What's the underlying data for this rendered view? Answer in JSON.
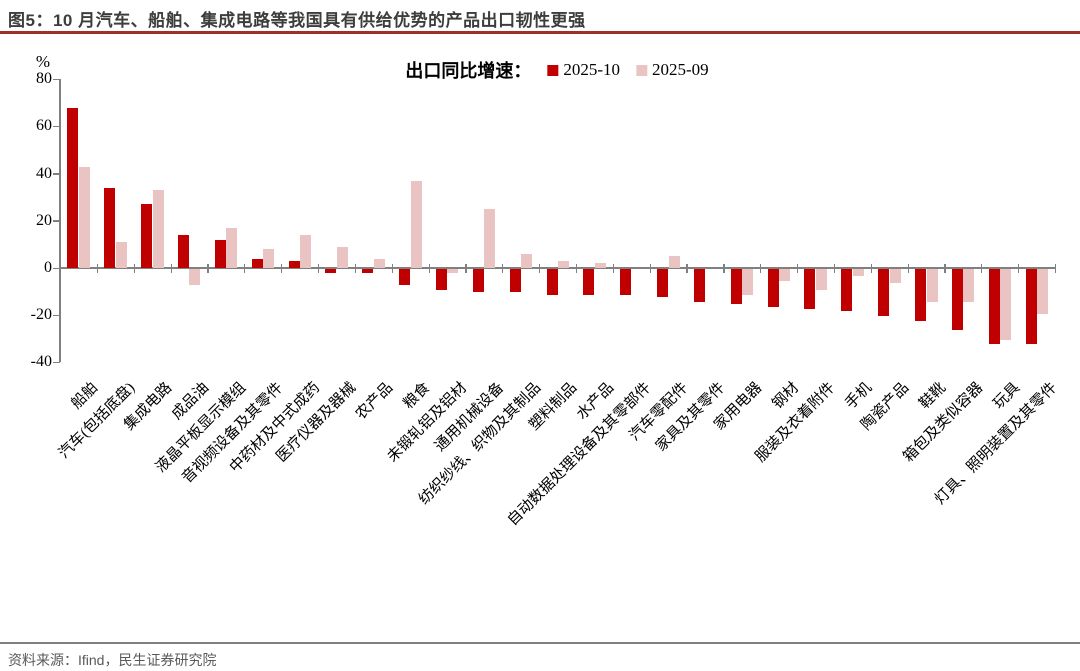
{
  "title": "图5：10 月汽车、船舶、集成电路等我国具有供给优势的产品出口韧性更强",
  "source": "资料来源：Ifind，民生证券研究院",
  "legend": {
    "prefix": "出口同比增速："
  },
  "y_axis": {
    "unit": "%",
    "ticks": [
      80,
      60,
      40,
      20,
      0,
      -20,
      -40
    ]
  },
  "colors": {
    "title_text": "#3d3d3d",
    "title_rule": "#9e3028",
    "axis": "#808080",
    "source_rule": "#7f7f7f",
    "source_text": "#595959",
    "series_dark": "#c00000",
    "series_light": "#e9c4c2"
  },
  "chart_data": {
    "type": "bar",
    "title": "出口同比增速",
    "xlabel": "",
    "ylabel": "%",
    "ylim": [
      -40,
      80
    ],
    "grid": false,
    "legend_position": "top-center",
    "categories": [
      "船舶",
      "汽车(包括底盘)",
      "集成电路",
      "成品油",
      "液晶平板显示模组",
      "音视频设备及其零件",
      "中药材及中式成药",
      "医疗仪器及器械",
      "农产品",
      "粮食",
      "未锻轧铝及铝材",
      "通用机械设备",
      "纺织纱线、织物及其制品",
      "塑料制品",
      "水产品",
      "自动数据处理设备及其零部件",
      "汽车零配件",
      "家具及其零件",
      "家用电器",
      "钢材",
      "服装及衣着附件",
      "手机",
      "陶瓷产品",
      "鞋靴",
      "箱包及类似容器",
      "玩具",
      "灯具、照明装置及其零件"
    ],
    "series": [
      {
        "name": "2025-10",
        "color": "#c00000",
        "values": [
          68,
          34,
          27,
          14,
          12,
          4,
          3,
          -2,
          -2,
          -7,
          -9,
          -10,
          -10,
          -11,
          -11,
          -11,
          -12,
          -14,
          -15,
          -16,
          -17,
          -18,
          -20,
          -22,
          -26,
          -32,
          -32
        ]
      },
      {
        "name": "2025-09",
        "color": "#e9c4c2",
        "values": [
          43,
          11,
          33,
          -7,
          17,
          8,
          14,
          9,
          4,
          37,
          -2,
          25,
          6,
          3,
          2,
          0,
          5,
          0,
          -11,
          -5,
          -9,
          -3,
          -6,
          -14,
          -14,
          -30,
          -19
        ]
      }
    ]
  }
}
